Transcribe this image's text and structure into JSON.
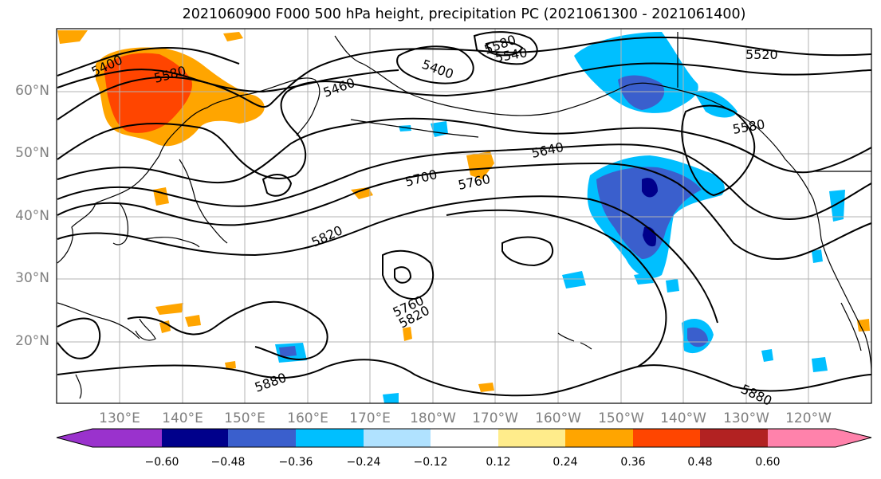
{
  "title": "2021060900 F000 500 hPa height, precipitation PC (2021061300 - 2021061400)",
  "lat_labels": [
    "60°N",
    "50°N",
    "40°N",
    "30°N",
    "20°N"
  ],
  "lon_labels": [
    "130°E",
    "140°E",
    "150°E",
    "160°E",
    "170°E",
    "180°W",
    "170°W",
    "160°W",
    "150°W",
    "140°W",
    "130°W",
    "120°W"
  ],
  "contour_labels": [
    "5400",
    "5580",
    "5460",
    "5400",
    "5580",
    "5540",
    "5520",
    "5580",
    "5640",
    "5700",
    "5760",
    "5820",
    "5760",
    "5820",
    "5880",
    "5880"
  ],
  "colorbar": {
    "ticks": [
      "−0.60",
      "−0.48",
      "−0.36",
      "−0.24",
      "−0.12",
      "0.12",
      "0.24",
      "0.36",
      "0.48",
      "0.60"
    ],
    "colors": [
      "#9a32cd",
      "#00008b",
      "#3a5fcd",
      "#00bfff",
      "#b0e2ff",
      "#ffffff",
      "#ffec8b",
      "#ffa500",
      "#ff4500",
      "#b22222",
      "#ff82ab"
    ]
  }
}
